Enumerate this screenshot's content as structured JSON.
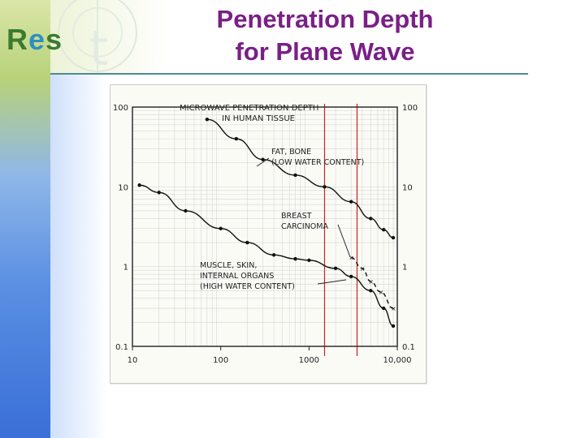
{
  "logo": {
    "r": "R",
    "e": "e",
    "s": "s"
  },
  "slide": {
    "title_line1": "Penetration Depth",
    "title_line2": "for Plane Wave"
  },
  "chart_data": {
    "type": "line",
    "title": "MICROWAVE PENETRATION DEPTH",
    "subtitle": "IN HUMAN TISSUE",
    "x_scale": "log",
    "y_scale": "log",
    "xlim": [
      10,
      10000
    ],
    "ylim": [
      0.1,
      100
    ],
    "x_ticks": [
      "10",
      "100",
      "1000",
      "10,000"
    ],
    "y_ticks": [
      "100",
      "10",
      "1",
      "0.1"
    ],
    "y_ticks_right": [
      "100",
      "10",
      "1",
      "0.1"
    ],
    "series": [
      {
        "name": "FAT, BONE (LOW WATER CONTENT)",
        "label_line1": "FAT, BONE",
        "label_line2": "(LOW WATER CONTENT)",
        "style": "solid",
        "x": [
          70,
          150,
          300,
          700,
          1500,
          3000,
          5000,
          7000,
          9000
        ],
        "y": [
          70,
          40,
          22,
          14,
          10,
          6.5,
          4,
          2.9,
          2.3
        ]
      },
      {
        "name": "MUSCLE, SKIN, INTERNAL ORGANS (HIGH WATER CONTENT)",
        "label_line1": "MUSCLE, SKIN,",
        "label_line2": "INTERNAL ORGANS",
        "label_line3": "(HIGH WATER CONTENT)",
        "style": "solid",
        "x": [
          12,
          20,
          40,
          100,
          200,
          400,
          700,
          1000,
          2000,
          3000,
          5000,
          7000,
          9000
        ],
        "y": [
          10.5,
          8.5,
          5,
          3,
          2,
          1.4,
          1.25,
          1.2,
          0.95,
          0.75,
          0.5,
          0.3,
          0.18
        ]
      },
      {
        "name": "BREAST CARCINOMA",
        "label_line1": "BREAST",
        "label_line2": "CARCINOMA",
        "style": "dashed",
        "x": [
          3000,
          4000,
          5000,
          6500,
          9000
        ],
        "y": [
          1.3,
          0.95,
          0.65,
          0.48,
          0.3
        ]
      }
    ],
    "vertical_lines": [
      1500,
      3500
    ],
    "vertical_line_color": "#cc2222",
    "grid": true
  }
}
